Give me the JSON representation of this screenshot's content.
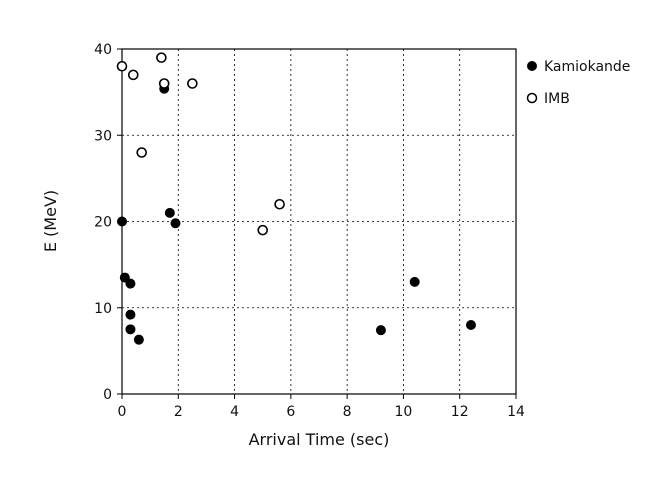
{
  "chart_data": {
    "type": "scatter",
    "title": "",
    "xlabel": "Arrival Time (sec)",
    "ylabel": "E (MeV)",
    "xlim": [
      0,
      14
    ],
    "ylim": [
      0,
      40
    ],
    "x_ticks": [
      0,
      2,
      4,
      6,
      8,
      10,
      12,
      14
    ],
    "y_ticks": [
      0,
      10,
      20,
      30,
      40
    ],
    "grid": "dashed",
    "legend_position": "top-right-outside",
    "series": [
      {
        "name": "Kamiokande",
        "marker": "filled-circle",
        "color": "#000000",
        "points": [
          {
            "x": 0.0,
            "y": 20.0
          },
          {
            "x": 0.1,
            "y": 13.5
          },
          {
            "x": 0.3,
            "y": 7.5
          },
          {
            "x": 0.3,
            "y": 9.2
          },
          {
            "x": 0.3,
            "y": 12.8
          },
          {
            "x": 0.6,
            "y": 6.3
          },
          {
            "x": 1.5,
            "y": 35.4
          },
          {
            "x": 1.7,
            "y": 21.0
          },
          {
            "x": 1.9,
            "y": 19.8
          },
          {
            "x": 9.2,
            "y": 7.4
          },
          {
            "x": 10.4,
            "y": 13.0
          },
          {
            "x": 12.4,
            "y": 8.0
          }
        ]
      },
      {
        "name": "IMB",
        "marker": "open-circle",
        "color": "#000000",
        "points": [
          {
            "x": 0.0,
            "y": 38.0
          },
          {
            "x": 0.4,
            "y": 37.0
          },
          {
            "x": 0.7,
            "y": 28.0
          },
          {
            "x": 1.4,
            "y": 39.0
          },
          {
            "x": 1.5,
            "y": 36.0
          },
          {
            "x": 2.5,
            "y": 36.0
          },
          {
            "x": 5.0,
            "y": 19.0
          },
          {
            "x": 5.6,
            "y": 22.0
          }
        ]
      }
    ]
  }
}
